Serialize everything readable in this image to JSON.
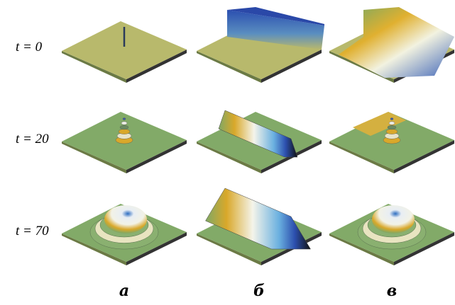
{
  "rows": [
    "t = 0",
    "t = 20",
    "t = 70"
  ],
  "columns": [
    "а",
    "б",
    "в"
  ]
}
